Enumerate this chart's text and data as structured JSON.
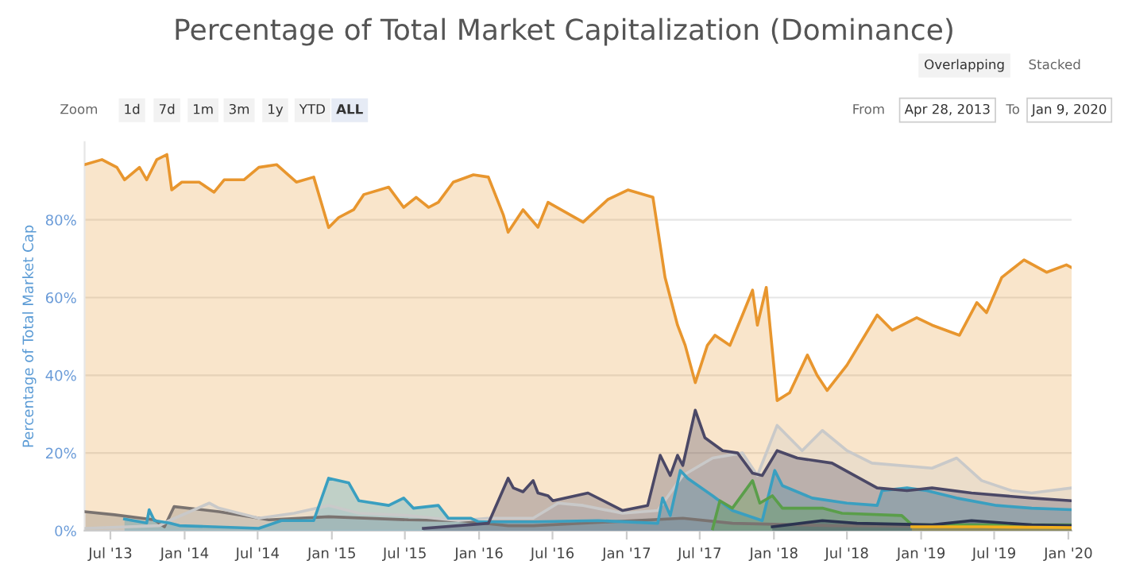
{
  "chart_data": {
    "type": "area",
    "title": "Percentage of Total Market Capitalization (Dominance)",
    "ylabel": "Percentage of Total Market Cap",
    "annotations": [
      "Overlapping",
      "Stacked",
      "Zoom",
      "1d",
      "7d",
      "1m",
      "3m",
      "1y",
      "YTD",
      "ALL",
      "From",
      "Apr 28, 2013",
      "To",
      "Jan 9, 2020"
    ],
    "xlim": [
      "2013-04-28",
      "2020-01-09"
    ],
    "ylim": [
      0,
      100
    ],
    "xticks": [
      {
        "value": "2013-07-01",
        "label": "Jul '13"
      },
      {
        "value": "2014-01-01",
        "label": "Jan '14"
      },
      {
        "value": "2014-07-01",
        "label": "Jul '14"
      },
      {
        "value": "2015-01-01",
        "label": "Jan '15"
      },
      {
        "value": "2015-07-01",
        "label": "Jul '15"
      },
      {
        "value": "2016-01-01",
        "label": "Jan '16"
      },
      {
        "value": "2016-07-01",
        "label": "Jul '16"
      },
      {
        "value": "2017-01-01",
        "label": "Jan '17"
      },
      {
        "value": "2017-07-01",
        "label": "Jul '17"
      },
      {
        "value": "2018-01-01",
        "label": "Jan '18"
      },
      {
        "value": "2018-07-01",
        "label": "Jul '18"
      },
      {
        "value": "2019-01-01",
        "label": "Jan '19"
      },
      {
        "value": "2019-07-01",
        "label": "Jul '19"
      },
      {
        "value": "2020-01-01",
        "label": "Jan '20"
      }
    ],
    "yticks": [
      {
        "value": 0,
        "label": "0%"
      },
      {
        "value": 20,
        "label": "20%"
      },
      {
        "value": 40,
        "label": "40%"
      },
      {
        "value": 60,
        "label": "60%"
      },
      {
        "value": 80,
        "label": "80%"
      }
    ],
    "grid": "y",
    "legend": false,
    "series": [
      {
        "color": "#e8962e",
        "x": [
          "2013-04-28",
          "2013-06-10",
          "2013-07-17",
          "2013-08-05",
          "2013-09-11",
          "2013-09-29",
          "2013-10-24",
          "2013-11-18",
          "2013-11-30",
          "2013-12-25",
          "2014-02-06",
          "2014-03-15",
          "2014-04-09",
          "2014-05-28",
          "2014-07-04",
          "2014-08-17",
          "2014-10-05",
          "2014-11-17",
          "2014-12-24",
          "2015-01-18",
          "2015-02-24",
          "2015-03-21",
          "2015-05-22",
          "2015-06-28",
          "2015-07-29",
          "2015-08-29",
          "2015-09-22",
          "2015-10-29",
          "2015-12-18",
          "2016-01-24",
          "2016-03-01",
          "2016-03-13",
          "2016-04-19",
          "2016-05-26",
          "2016-06-20",
          "2016-09-15",
          "2016-11-15",
          "2017-01-04",
          "2017-03-07",
          "2017-03-25",
          "2017-04-06",
          "2017-05-07",
          "2017-05-26",
          "2017-06-20",
          "2017-07-20",
          "2017-08-08",
          "2017-09-14",
          "2017-10-15",
          "2017-11-09",
          "2017-11-21",
          "2017-12-13",
          "2018-01-09",
          "2018-02-09",
          "2018-03-25",
          "2018-04-18",
          "2018-05-13",
          "2018-07-01",
          "2018-09-14",
          "2018-10-21",
          "2018-12-21",
          "2019-01-28",
          "2019-04-06",
          "2019-05-19",
          "2019-06-12",
          "2019-07-20",
          "2019-09-13",
          "2019-11-08",
          "2019-12-27",
          "2020-01-09"
        ],
        "values": [
          94.2,
          95.5,
          93.5,
          90.3,
          93.5,
          90.3,
          95.5,
          96.8,
          87.7,
          89.7,
          89.7,
          87.1,
          90.3,
          90.3,
          93.5,
          94.2,
          89.7,
          91,
          78,
          80.6,
          82.6,
          86.5,
          88.4,
          83.2,
          85.8,
          83.2,
          84.5,
          89.7,
          91.6,
          91,
          81.3,
          76.8,
          82.6,
          78.1,
          84.5,
          79.4,
          85.2,
          87.7,
          85.8,
          73.5,
          65.2,
          52.9,
          47.7,
          38.1,
          47.7,
          50.3,
          47.7,
          55.5,
          61.9,
          52.9,
          62.6,
          33.5,
          35.5,
          45.2,
          40,
          36.1,
          42.6,
          55.5,
          51.6,
          54.8,
          52.9,
          50.3,
          58.7,
          56.1,
          65.2,
          69.7,
          66.5,
          68.4,
          67.7
        ]
      },
      {
        "color": "#7a7370",
        "x": [
          "2013-04-28",
          "2013-07-11",
          "2013-10-18",
          "2013-11-12",
          "2013-12-06",
          "2014-03-27",
          "2014-07-29",
          "2014-12-24",
          "2015-07-10",
          "2015-11-11",
          "2016-03-13",
          "2016-05-14",
          "2017-05-20",
          "2017-09-20",
          "2018-05-25",
          "2020-01-09"
        ],
        "values": [
          4.9,
          4.1,
          2.8,
          1.0,
          6.2,
          4.9,
          2.8,
          3.6,
          2.8,
          2.6,
          1.3,
          1.3,
          3.2,
          1.9,
          1.3,
          1.0
        ]
      },
      {
        "color": "#c9c9c9",
        "x": [
          "2013-04-28",
          "2013-10-30",
          "2013-11-24",
          "2014-03-03",
          "2014-03-27",
          "2014-07-04",
          "2014-09-29",
          "2014-12-24",
          "2015-03-09",
          "2015-07-10",
          "2015-11-11",
          "2016-01-24",
          "2016-05-14",
          "2016-07-15",
          "2016-09-15",
          "2016-12-22",
          "2017-03-19",
          "2017-05-20",
          "2017-08-02",
          "2017-10-15",
          "2017-11-21",
          "2018-01-09",
          "2018-03-12",
          "2018-05-01",
          "2018-07-01",
          "2018-09-01",
          "2019-01-28",
          "2019-03-30",
          "2019-05-31",
          "2019-08-13",
          "2019-10-02",
          "2020-01-09"
        ],
        "values": [
          0.6,
          1.3,
          2.6,
          7.1,
          5.8,
          3.2,
          4.5,
          6.5,
          4.5,
          3.9,
          2.6,
          3.2,
          3.2,
          7.1,
          6.5,
          4.5,
          5.2,
          14.2,
          18.7,
          20,
          14.2,
          27.1,
          20.6,
          25.8,
          20.6,
          17.4,
          16.1,
          18.7,
          12.9,
          10.3,
          9.7,
          11
        ]
      },
      {
        "color": "#3a9fc0",
        "x": [
          "2013-08-05",
          "2013-09-29",
          "2013-10-05",
          "2013-10-18",
          "2013-11-24",
          "2013-12-19",
          "2014-07-04",
          "2014-08-29",
          "2014-11-17",
          "2014-12-24",
          "2015-02-12",
          "2015-03-09",
          "2015-05-22",
          "2015-06-28",
          "2015-07-22",
          "2015-09-22",
          "2015-10-17",
          "2015-12-12",
          "2015-12-30",
          "2016-05-14",
          "2016-10-22",
          "2017-03-19",
          "2017-03-31",
          "2017-04-19",
          "2017-05-14",
          "2017-06-01",
          "2017-08-02",
          "2017-09-20",
          "2017-12-03",
          "2018-01-03",
          "2018-01-22",
          "2018-04-06",
          "2018-07-01",
          "2018-09-14",
          "2018-09-26",
          "2018-11-27",
          "2019-01-15",
          "2019-03-30",
          "2019-07-07",
          "2019-10-02",
          "2020-01-09"
        ],
        "values": [
          3.0,
          2.0,
          5.4,
          2.6,
          2.0,
          1.3,
          0.6,
          2.6,
          2.6,
          13.5,
          12.3,
          7.7,
          6.5,
          8.4,
          5.8,
          6.5,
          3.2,
          3.2,
          2.3,
          2.3,
          2.6,
          1.9,
          8.4,
          3.9,
          15.5,
          13.5,
          9,
          5.2,
          2.6,
          15.5,
          11.6,
          8.4,
          7.1,
          6.5,
          10.3,
          11,
          10.3,
          8.4,
          6.5,
          5.8,
          5.4
        ]
      },
      {
        "color": "#4b4866",
        "x": [
          "2015-08-16",
          "2016-01-24",
          "2016-03-13",
          "2016-03-26",
          "2016-04-19",
          "2016-05-14",
          "2016-05-26",
          "2016-06-20",
          "2016-07-02",
          "2016-09-27",
          "2016-12-22",
          "2017-02-22",
          "2017-03-25",
          "2017-04-19",
          "2017-05-07",
          "2017-05-20",
          "2017-06-20",
          "2017-07-14",
          "2017-08-27",
          "2017-10-03",
          "2017-11-09",
          "2017-12-03",
          "2018-01-09",
          "2018-02-28",
          "2018-05-25",
          "2018-09-14",
          "2018-11-27",
          "2019-01-28",
          "2019-05-06",
          "2019-10-02",
          "2020-01-09"
        ],
        "values": [
          0.6,
          1.9,
          13.5,
          11,
          10,
          12.9,
          9.7,
          9,
          7.7,
          9.7,
          5.2,
          6.5,
          19.4,
          14.2,
          19.4,
          16.8,
          31,
          23.9,
          20.6,
          20,
          14.8,
          14.2,
          20.6,
          18.7,
          17.4,
          11,
          10.3,
          11,
          9.7,
          8.4,
          7.7
        ]
      },
      {
        "color": "#5a9e4a",
        "x": [
          "2017-08-02",
          "2017-08-20",
          "2017-09-20",
          "2017-11-09",
          "2017-11-27",
          "2017-12-28",
          "2018-01-22",
          "2018-05-01",
          "2018-06-19",
          "2018-11-14",
          "2018-12-09",
          "2020-01-09"
        ],
        "values": [
          0.5,
          7.7,
          5.8,
          12.9,
          7.1,
          9,
          5.8,
          5.8,
          4.5,
          3.9,
          1.5,
          1.5
        ]
      },
      {
        "color": "#2b3450",
        "x": [
          "2017-12-28",
          "2018-05-01",
          "2018-07-26",
          "2019-01-28",
          "2019-05-06",
          "2019-10-02",
          "2020-01-09"
        ],
        "values": [
          1.0,
          2.6,
          1.9,
          1.5,
          2.6,
          1.5,
          1.3
        ]
      },
      {
        "color": "#f2b01e",
        "x": [
          "2018-12-09",
          "2019-05-31",
          "2020-01-09"
        ],
        "values": [
          1.0,
          1.0,
          0.8
        ]
      }
    ]
  }
}
